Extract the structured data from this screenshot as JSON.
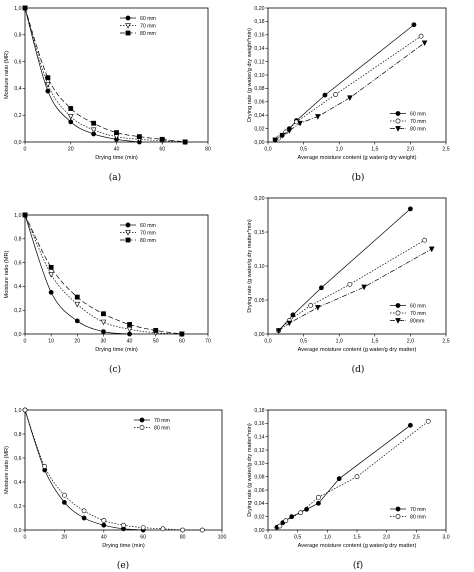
{
  "chart_data": [
    {
      "panel": "a",
      "type": "line",
      "caption": "(a)",
      "xlabel": "Drying time (min)",
      "ylabel": "Moisture ratio (MR)",
      "xlim": [
        0,
        80
      ],
      "ylim": [
        0,
        1.0
      ],
      "xticks": [
        "0",
        "20",
        "40",
        "60",
        "80"
      ],
      "yticks": [
        "0,0",
        "0,2",
        "0,4",
        "0,6",
        "0,8",
        "1,0"
      ],
      "legend_position": "top-right",
      "series": [
        {
          "name": "60 mm",
          "marker": "circle-filled",
          "dash": "",
          "x": [
            0,
            10,
            20,
            30,
            40,
            50
          ],
          "y": [
            1.0,
            0.38,
            0.15,
            0.06,
            0.02,
            0.0
          ]
        },
        {
          "name": "70 mm",
          "marker": "triangle-down-open",
          "dash": "1.5,1.5",
          "x": [
            0,
            10,
            20,
            30,
            40,
            50,
            60,
            70
          ],
          "y": [
            1.0,
            0.43,
            0.19,
            0.09,
            0.04,
            0.02,
            0.01,
            0.0
          ]
        },
        {
          "name": "80 mm",
          "marker": "square-filled",
          "dash": "5,2.5",
          "x": [
            0,
            10,
            20,
            30,
            40,
            50,
            60,
            70
          ],
          "y": [
            1.0,
            0.48,
            0.25,
            0.14,
            0.07,
            0.04,
            0.02,
            0.0
          ]
        }
      ]
    },
    {
      "panel": "b",
      "type": "line",
      "caption": "(b)",
      "xlabel": "Average moisture content (g water/g dry weight)",
      "ylabel": "Drying rate (g water/g dry weight*min)",
      "xlim": [
        0,
        2.5
      ],
      "ylim": [
        0,
        0.2
      ],
      "xticks": [
        "0,0",
        "0,5",
        "1,0",
        "1,5",
        "2,0",
        "2,5"
      ],
      "yticks": [
        "0,00",
        "0,02",
        "0,04",
        "0,06",
        "0,08",
        "0,10",
        "0,12",
        "0,14",
        "0,16",
        "0,18",
        "0,20"
      ],
      "legend_position": "bottom-right",
      "series": [
        {
          "name": "60 mm",
          "marker": "circle-filled",
          "dash": "",
          "x": [
            0.1,
            0.2,
            0.3,
            0.4,
            0.8,
            2.05
          ],
          "y": [
            0.003,
            0.01,
            0.02,
            0.032,
            0.07,
            0.175
          ]
        },
        {
          "name": "70 mm",
          "marker": "circle-open",
          "dash": "1.5,1.5",
          "x": [
            0.15,
            0.25,
            0.4,
            0.95,
            2.15
          ],
          "y": [
            0.006,
            0.015,
            0.03,
            0.071,
            0.158
          ]
        },
        {
          "name": "80 mm",
          "marker": "triangle-down-filled",
          "dash": "5,1.5,1,1.5",
          "x": [
            0.1,
            0.2,
            0.3,
            0.45,
            0.7,
            1.15,
            2.2
          ],
          "y": [
            0.003,
            0.01,
            0.017,
            0.028,
            0.038,
            0.066,
            0.148
          ]
        }
      ]
    },
    {
      "panel": "c",
      "type": "line",
      "caption": "(c)",
      "xlabel": "Drying time (min)",
      "ylabel": "Moisture ratio (MR)",
      "xlim": [
        0,
        70
      ],
      "ylim": [
        0,
        1.0
      ],
      "xticks": [
        "0",
        "10",
        "20",
        "30",
        "40",
        "50",
        "60",
        "70"
      ],
      "yticks": [
        "0,0",
        "0,2",
        "0,4",
        "0,6",
        "0,8",
        "1,0"
      ],
      "legend_position": "top-right",
      "series": [
        {
          "name": "60 mm",
          "marker": "circle-filled",
          "dash": "",
          "x": [
            0,
            10,
            20,
            30,
            40
          ],
          "y": [
            1.0,
            0.35,
            0.11,
            0.02,
            0.0
          ]
        },
        {
          "name": "70 mm",
          "marker": "triangle-down-open",
          "dash": "1.5,1.5",
          "x": [
            0,
            10,
            20,
            30,
            40,
            50,
            60
          ],
          "y": [
            1.0,
            0.5,
            0.25,
            0.1,
            0.04,
            0.01,
            0.0
          ]
        },
        {
          "name": "80 mm",
          "marker": "square-filled",
          "dash": "5,2.5",
          "x": [
            0,
            10,
            20,
            30,
            40,
            50,
            60
          ],
          "y": [
            1.0,
            0.56,
            0.31,
            0.17,
            0.08,
            0.03,
            0.0
          ]
        }
      ]
    },
    {
      "panel": "d",
      "type": "line",
      "caption": "(d)",
      "xlabel": "Average moisture content (g water/g dry matter)",
      "ylabel": "Drying rate (g water/g dry matter*min)",
      "xlim": [
        0,
        2.5
      ],
      "ylim": [
        0,
        0.2
      ],
      "xticks": [
        "0,0",
        "0,5",
        "1,0",
        "1,5",
        "2,0",
        "2,5"
      ],
      "yticks": [
        "0,00",
        "0,05",
        "0,10",
        "0,15",
        "0,20"
      ],
      "legend_position": "bottom-right",
      "series": [
        {
          "name": "60 mm",
          "marker": "circle-filled",
          "dash": "",
          "x": [
            0.15,
            0.35,
            0.75,
            2.0
          ],
          "y": [
            0.005,
            0.028,
            0.068,
            0.184
          ]
        },
        {
          "name": "70 mm",
          "marker": "circle-open",
          "dash": "1.5,1.5",
          "x": [
            0.15,
            0.3,
            0.6,
            1.15,
            2.2
          ],
          "y": [
            0.005,
            0.02,
            0.042,
            0.073,
            0.138
          ]
        },
        {
          "name": "80mm",
          "marker": "triangle-down-filled",
          "dash": "5,1.5,1,1.5",
          "x": [
            0.15,
            0.3,
            0.7,
            1.35,
            2.3
          ],
          "y": [
            0.005,
            0.016,
            0.039,
            0.069,
            0.125
          ]
        }
      ]
    },
    {
      "panel": "e",
      "type": "line",
      "caption": "(e)",
      "xlabel": "Drying time (min)",
      "ylabel": "Moisture ratio (MR)",
      "xlim": [
        0,
        100
      ],
      "ylim": [
        0,
        1.0
      ],
      "xticks": [
        "0",
        "20",
        "40",
        "60",
        "80",
        "100"
      ],
      "yticks": [
        "0,0",
        "0,2",
        "0,4",
        "0,6",
        "0,8",
        "1,0"
      ],
      "legend_position": "top-right",
      "series": [
        {
          "name": "70 mm",
          "marker": "circle-filled",
          "dash": "",
          "x": [
            0,
            10,
            20,
            30,
            40,
            50,
            60
          ],
          "y": [
            1.0,
            0.5,
            0.23,
            0.1,
            0.04,
            0.01,
            0.0
          ]
        },
        {
          "name": "80 mm",
          "marker": "circle-open",
          "dash": "1.5,1.5",
          "x": [
            0,
            10,
            20,
            30,
            40,
            50,
            60,
            70,
            80,
            90
          ],
          "y": [
            1.0,
            0.53,
            0.29,
            0.16,
            0.08,
            0.04,
            0.02,
            0.01,
            0.0,
            0.0
          ]
        }
      ]
    },
    {
      "panel": "f",
      "type": "line",
      "caption": "(f)",
      "xlabel": "Average moisture content (g water/g dry matter)",
      "ylabel": "Drying rate (g water/g dry matter*min)",
      "xlim": [
        0,
        3.0
      ],
      "ylim": [
        0,
        0.18
      ],
      "xticks": [
        "0,0",
        "0,5",
        "1,0",
        "1,5",
        "2,0",
        "2,5",
        "3,0"
      ],
      "yticks": [
        "0,00",
        "0,02",
        "0,04",
        "0,06",
        "0,08",
        "0,10",
        "0,12",
        "0,14",
        "0,16",
        "0,18"
      ],
      "legend_position": "bottom-right",
      "series": [
        {
          "name": "70 mm",
          "marker": "circle-filled",
          "dash": "",
          "x": [
            0.15,
            0.25,
            0.4,
            0.65,
            0.85,
            1.2,
            2.4
          ],
          "y": [
            0.004,
            0.011,
            0.02,
            0.031,
            0.04,
            0.077,
            0.157
          ]
        },
        {
          "name": "80 mm",
          "marker": "circle-open",
          "dash": "1.5,1.5",
          "x": [
            0.2,
            0.3,
            0.55,
            0.85,
            1.5,
            2.7
          ],
          "y": [
            0.006,
            0.014,
            0.026,
            0.049,
            0.08,
            0.163
          ]
        }
      ]
    }
  ]
}
